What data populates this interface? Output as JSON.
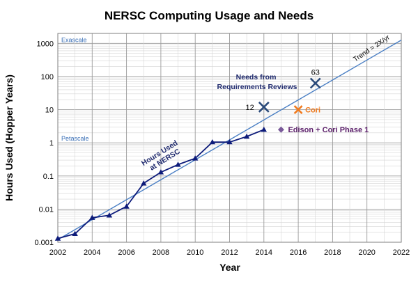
{
  "chart_data": {
    "type": "line",
    "title": "NERSC Computing Usage and Needs",
    "xlabel": "Year",
    "ylabel": "Hours Used (Hopper Years)",
    "xlim": [
      2002,
      2022
    ],
    "ylim": [
      0.001,
      2000
    ],
    "y_scale": "log",
    "x_ticks": [
      2002,
      2004,
      2006,
      2008,
      2010,
      2012,
      2014,
      2016,
      2018,
      2020,
      2022
    ],
    "y_ticks": [
      {
        "value": 0.001,
        "label": "0.001"
      },
      {
        "value": 0.01,
        "label": "0.01"
      },
      {
        "value": 0.1,
        "label": "0.1"
      },
      {
        "value": 1,
        "label": "1"
      },
      {
        "value": 10,
        "label": "10"
      },
      {
        "value": 100,
        "label": "100"
      },
      {
        "value": 1000,
        "label": "1000"
      }
    ],
    "grid": true,
    "series": [
      {
        "label": "Hours Used at NERSC",
        "label_lines": [
          "Hours Used",
          "at NERSC"
        ],
        "color": "#0d1b7a",
        "marker": "triangle",
        "x": [
          2002,
          2003,
          2004,
          2005,
          2006,
          2007,
          2008,
          2009,
          2010,
          2011,
          2012,
          2013,
          2014
        ],
        "y": [
          0.0013,
          0.0018,
          0.0055,
          0.0065,
          0.012,
          0.06,
          0.13,
          0.22,
          0.34,
          1.05,
          1.05,
          1.55,
          2.5
        ]
      },
      {
        "label": "Trend = 2X/yr",
        "color": "#4a7fc4",
        "x": [
          2002,
          2022
        ],
        "y": [
          0.0012,
          1258
        ]
      }
    ],
    "points": [
      {
        "name": "needs-2014",
        "x": 2014,
        "y": 12,
        "label": "12",
        "marker": "x",
        "color": "#2a4a7a"
      },
      {
        "name": "needs-2017",
        "x": 2017,
        "y": 63,
        "label": "63",
        "marker": "x",
        "color": "#2a4a7a"
      },
      {
        "name": "cori",
        "x": 2016,
        "y": 10,
        "label": "Cori",
        "marker": "x",
        "color": "#f07a1e"
      },
      {
        "name": "edison-cori-phase1",
        "x": 2015,
        "y": 2.5,
        "label": "Edison + Cori Phase 1",
        "marker": "diamond",
        "color": "#7a5a9a"
      }
    ],
    "annotations": {
      "needs_lines": [
        "Needs from",
        "Requirements Reviews"
      ],
      "exascale": {
        "text": "Exascale",
        "y": 1000
      },
      "petascale": {
        "text": "Petascale",
        "y": 1
      }
    }
  }
}
